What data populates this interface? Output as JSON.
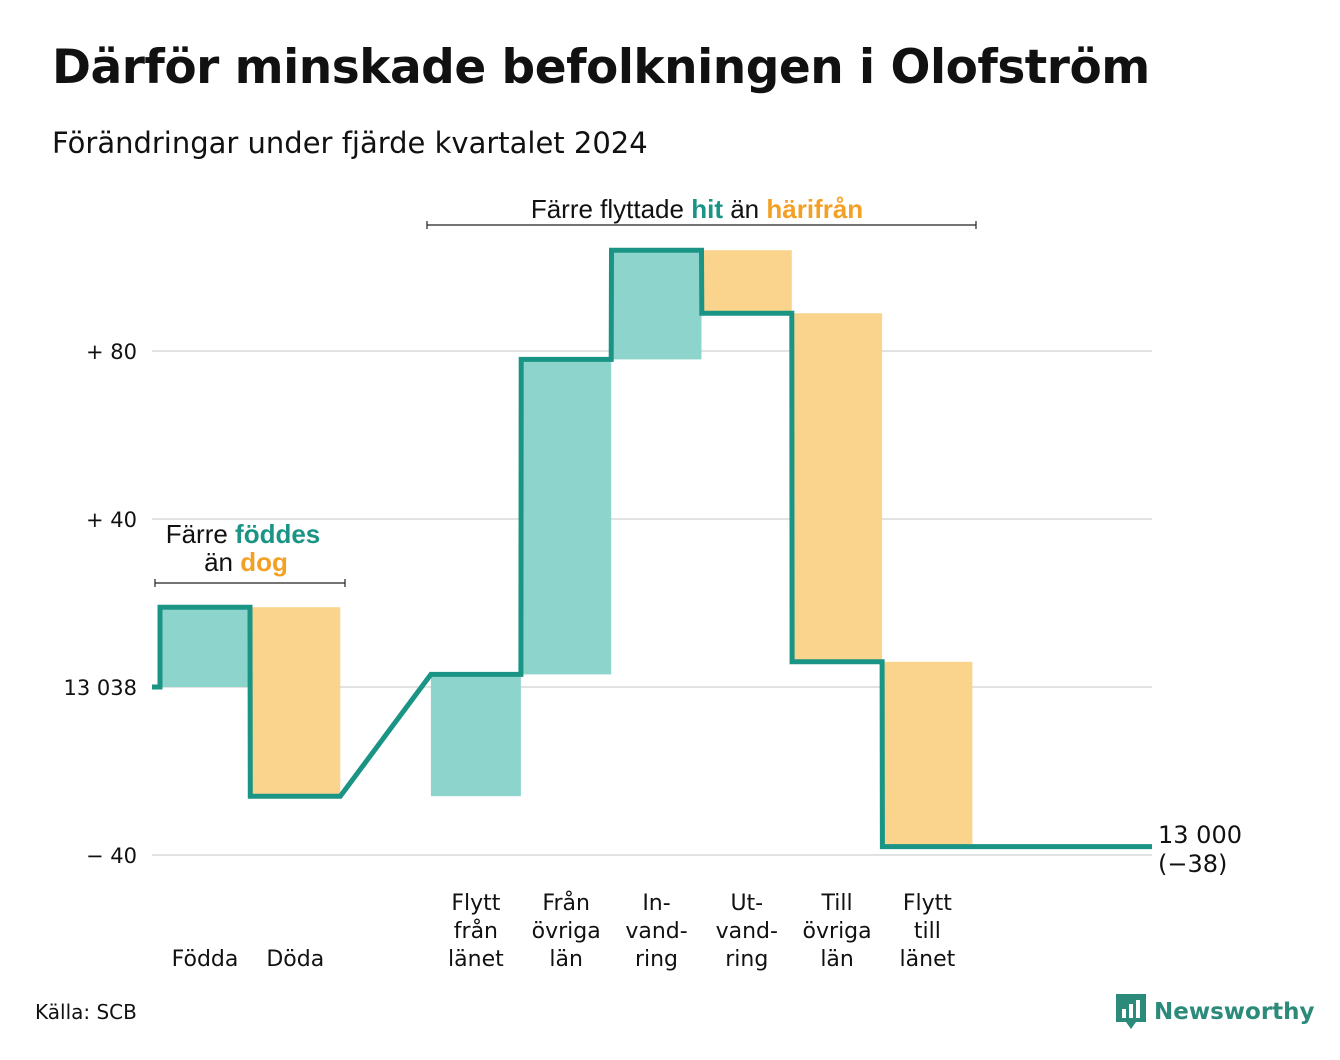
{
  "title": "Därför minskade befolkningen i Olofström",
  "subtitle": "Förändringar under fjärde kvartalet 2024",
  "source": "Källa: SCB",
  "logo": {
    "text": "Newsworthy",
    "icon": "newsworthy-chart-icon"
  },
  "colors": {
    "increase": "#8dd5cc",
    "decrease": "#fad48c",
    "line": "#1a9484",
    "grid": "#e2e2e2",
    "hit": "#1a9484",
    "away": "#f3a124"
  },
  "chart_data": {
    "type": "waterfall",
    "start": 13038,
    "end": 13000,
    "net_change": -38,
    "ylim": [
      -42,
      108
    ],
    "y_ticks": [
      {
        "value": 80,
        "label": "+ 80"
      },
      {
        "value": 40,
        "label": "+ 40"
      },
      {
        "value": 0,
        "label": "13 038"
      },
      {
        "value": -40,
        "label": "− 40"
      }
    ],
    "steps": [
      {
        "category": "Födda",
        "label_lines": [
          "Födda"
        ],
        "value": 19,
        "slot": 0
      },
      {
        "category": "Döda",
        "label_lines": [
          "Döda"
        ],
        "value": -45,
        "slot": 1
      },
      {
        "category": "Flytt från länet",
        "label_lines": [
          "Flytt",
          "från",
          "länet"
        ],
        "value": 29,
        "slot": 3
      },
      {
        "category": "Från övriga län",
        "label_lines": [
          "Från",
          "övriga",
          "län"
        ],
        "value": 75,
        "slot": 4
      },
      {
        "category": "Invandring",
        "label_lines": [
          "In-",
          "vand-",
          "ring"
        ],
        "value": 26,
        "slot": 5
      },
      {
        "category": "Utvandring",
        "label_lines": [
          "Ut-",
          "vand-",
          "ring"
        ],
        "value": -15,
        "slot": 6
      },
      {
        "category": "Till övriga län",
        "label_lines": [
          "Till",
          "övriga",
          "län"
        ],
        "value": -83,
        "slot": 7
      },
      {
        "category": "Flytt till länet",
        "label_lines": [
          "Flytt",
          "till",
          "länet"
        ],
        "value": -44,
        "slot": 8
      }
    ],
    "end_label_lines": [
      "13 000",
      "(−38)"
    ],
    "annotations": [
      {
        "id": "births-deaths",
        "parts": [
          {
            "text": "Färre ",
            "style": "plain"
          },
          {
            "text": "föddes",
            "style": "hit"
          },
          {
            "text": "än ",
            "style": "plain"
          },
          {
            "text": "dog",
            "style": "away"
          }
        ]
      },
      {
        "id": "migration",
        "parts": [
          {
            "text": "Färre flyttade ",
            "style": "plain"
          },
          {
            "text": "hit",
            "style": "hit"
          },
          {
            "text": " än ",
            "style": "plain"
          },
          {
            "text": "härifrån",
            "style": "away"
          }
        ]
      }
    ]
  }
}
